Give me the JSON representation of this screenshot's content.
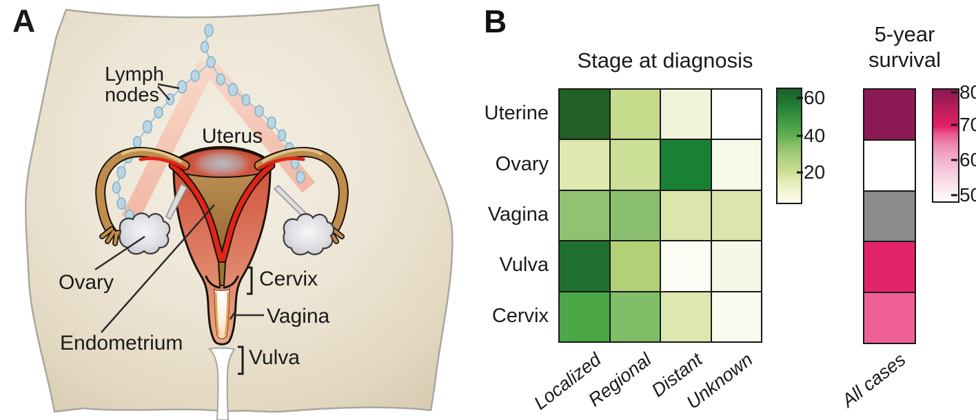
{
  "figure": {
    "panel_a_label": "A",
    "panel_b_label": "B"
  },
  "panel_a": {
    "labels": {
      "lymph_line1": "Lymph",
      "lymph_line2": "nodes",
      "uterus": "Uterus",
      "ovary": "Ovary",
      "endometrium": "Endometrium",
      "cervix": "Cervix",
      "vagina": "Vagina",
      "vulva": "Vulva"
    }
  },
  "panel_b": {
    "stage_title": "Stage at diagnosis",
    "survival_title_line1": "5-year",
    "survival_title_line2": "survival",
    "row_labels": [
      "Uterine",
      "Ovary",
      "Vagina",
      "Vulva",
      "Cervix"
    ],
    "stage_columns": [
      "Localized",
      "Regional",
      "Distant",
      "Unknown"
    ],
    "survival_column": "All cases",
    "stage_colorbar_ticks": [
      "60",
      "40",
      "20"
    ],
    "survival_colorbar_ticks": [
      "80",
      "70",
      "60",
      "50"
    ]
  },
  "chart_data": [
    {
      "type": "heatmap",
      "title": "Stage at diagnosis",
      "rows": [
        "Uterine",
        "Ovary",
        "Vagina",
        "Vulva",
        "Cervix"
      ],
      "columns": [
        "Localized",
        "Regional",
        "Distant",
        "Unknown"
      ],
      "value_unit": "percent (estimated from color scale)",
      "values": [
        [
          67,
          20,
          9,
          2
        ],
        [
          15,
          20,
          57,
          5
        ],
        [
          32,
          34,
          16,
          16
        ],
        [
          61,
          26,
          4,
          6
        ],
        [
          45,
          36,
          16,
          5
        ]
      ],
      "cell_colors": [
        [
          "#206027",
          "#c6db8b",
          "#eff3da",
          "#ffffff"
        ],
        [
          "#dfe8af",
          "#ccdf96",
          "#1a8134",
          "#f7f9e9"
        ],
        [
          "#90c271",
          "#89bf6e",
          "#dce6ac",
          "#dbe5ad"
        ],
        [
          "#1f7030",
          "#b3d077",
          "#fbfdf4",
          "#f4f8e6"
        ],
        [
          "#4ca847",
          "#7fbd67",
          "#dde8af",
          "#f9fbf0"
        ]
      ],
      "colorbar": {
        "ticks": [
          60,
          40,
          20
        ],
        "min": 2,
        "max": 66,
        "low_color": "#fdfdeb",
        "high_color": "#1b612c"
      },
      "legend_position": "right",
      "grid": true
    },
    {
      "type": "heatmap",
      "title": "5-year survival",
      "rows": [
        "Uterine",
        "Ovary",
        "Vagina",
        "Vulva",
        "Cervix"
      ],
      "columns": [
        "All cases"
      ],
      "value_unit": "percent (estimated from color scale)",
      "values": [
        [
          81
        ],
        [
          49
        ],
        [
          null
        ],
        [
          71
        ],
        [
          66
        ]
      ],
      "no_data_rows": [
        "Vagina"
      ],
      "cell_colors": [
        "#8e1a55",
        "#ffffff",
        "#8c8b8b",
        "#e32368",
        "#ee5f94"
      ],
      "colorbar": {
        "ticks": [
          80,
          70,
          60,
          50
        ],
        "min": 48,
        "max": 81,
        "low_color": "#fefcfd",
        "high_color": "#8e1a54"
      },
      "legend_position": "right",
      "no_data_color": "#8c8b8b"
    }
  ]
}
